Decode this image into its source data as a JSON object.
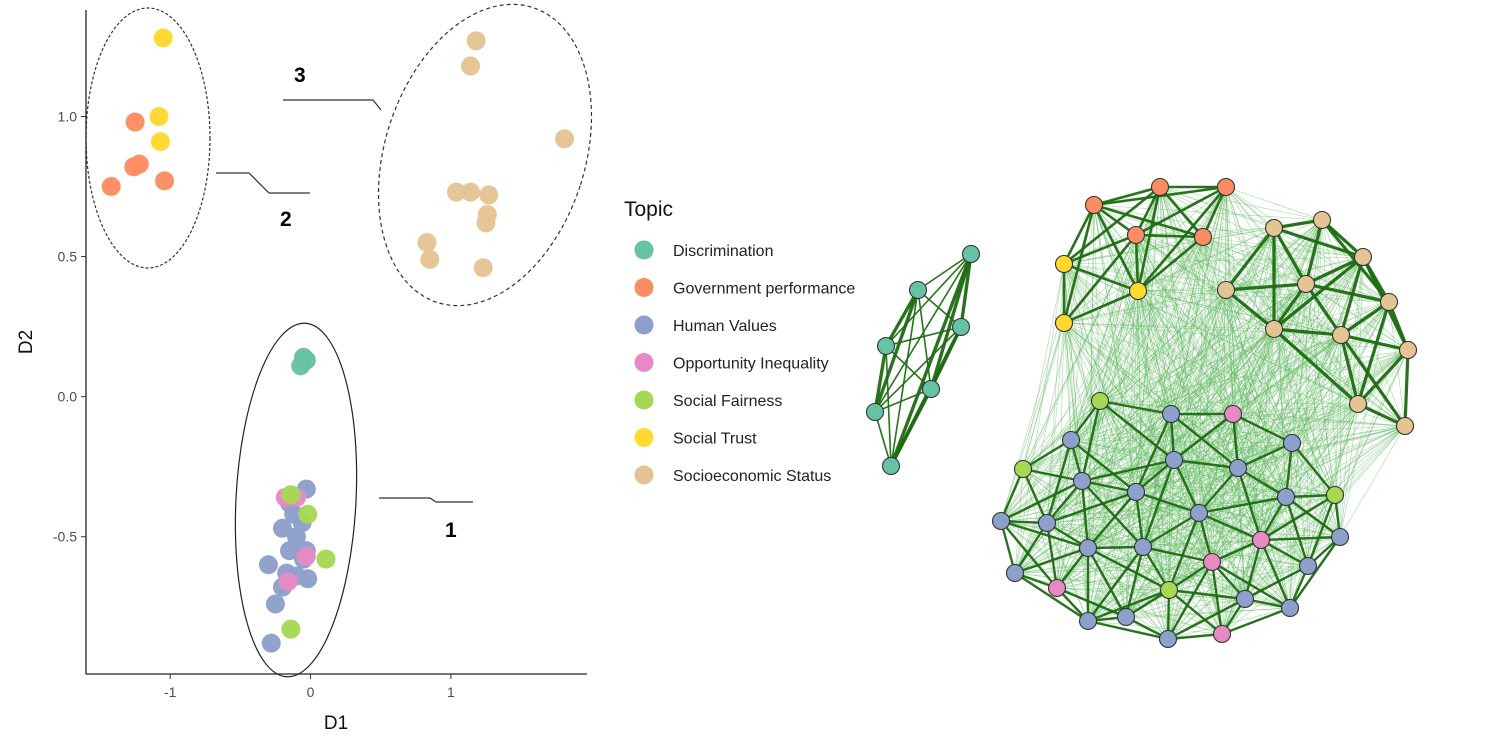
{
  "colors": {
    "Discrimination": "#66c2a5",
    "Government performance": "#fc8d62",
    "Human Values": "#8da0cb",
    "Opportunity Inequality": "#e78ac3",
    "Social Fairness": "#a6d854",
    "Social Trust": "#ffd92f",
    "Socioeconomic Status": "#e5c494"
  },
  "chart_data": [
    {
      "type": "scatter",
      "xlabel": "D1",
      "ylabel": "D2",
      "xlim": [
        -1.6,
        1.97
      ],
      "ylim": [
        -0.99,
        1.38
      ],
      "xticks": [
        "-1",
        "0",
        "1"
      ],
      "yticks": [
        "1.0",
        "0.5",
        "0.0",
        "-0.5"
      ],
      "xtick_values": [
        -1,
        0,
        1
      ],
      "ytick_values": [
        1.0,
        0.5,
        0.0,
        -0.5
      ],
      "grid": false,
      "cluster_labels": [
        "1",
        "2",
        "3"
      ],
      "series": [
        {
          "name": "Discrimination",
          "points": [
            [
              -0.05,
              0.14
            ],
            [
              -0.03,
              0.13
            ],
            [
              -0.07,
              0.11
            ]
          ]
        },
        {
          "name": "Government performance",
          "points": [
            [
              -1.25,
              0.98
            ],
            [
              -1.22,
              0.83
            ],
            [
              -1.26,
              0.82
            ],
            [
              -1.04,
              0.77
            ],
            [
              -1.42,
              0.75
            ]
          ]
        },
        {
          "name": "Human Values",
          "points": [
            [
              -0.03,
              -0.33
            ],
            [
              -0.15,
              -0.38
            ],
            [
              -0.12,
              -0.42
            ],
            [
              -0.06,
              -0.45
            ],
            [
              -0.2,
              -0.47
            ],
            [
              -0.1,
              -0.5
            ],
            [
              -0.15,
              -0.55
            ],
            [
              -0.03,
              -0.55
            ],
            [
              -0.3,
              -0.6
            ],
            [
              -0.17,
              -0.63
            ],
            [
              -0.1,
              -0.64
            ],
            [
              -0.02,
              -0.65
            ],
            [
              -0.2,
              -0.68
            ],
            [
              -0.25,
              -0.74
            ],
            [
              -0.28,
              -0.88
            ],
            [
              -0.05,
              -0.58
            ]
          ]
        },
        {
          "name": "Opportunity Inequality",
          "points": [
            [
              -0.18,
              -0.36
            ],
            [
              -0.1,
              -0.36
            ],
            [
              -0.03,
              -0.57
            ],
            [
              -0.16,
              -0.66
            ]
          ]
        },
        {
          "name": "Social Fairness",
          "points": [
            [
              -0.14,
              -0.35
            ],
            [
              -0.02,
              -0.42
            ],
            [
              0.11,
              -0.58
            ],
            [
              -0.14,
              -0.83
            ]
          ]
        },
        {
          "name": "Social Trust",
          "points": [
            [
              -1.05,
              1.28
            ],
            [
              -1.08,
              1.0
            ],
            [
              -1.07,
              0.91
            ]
          ]
        },
        {
          "name": "Socioeconomic Status",
          "points": [
            [
              1.18,
              1.27
            ],
            [
              1.14,
              1.18
            ],
            [
              1.81,
              0.92
            ],
            [
              1.04,
              0.73
            ],
            [
              1.14,
              0.73
            ],
            [
              1.27,
              0.72
            ],
            [
              1.26,
              0.65
            ],
            [
              1.25,
              0.62
            ],
            [
              0.83,
              0.55
            ],
            [
              0.85,
              0.49
            ],
            [
              1.23,
              0.46
            ]
          ]
        }
      ]
    },
    {
      "type": "network",
      "legend": {
        "title": "Topic",
        "position": "left",
        "entries": [
          "Discrimination",
          "Government performance",
          "Human Values",
          "Opportunity Inequality",
          "Social Fairness",
          "Social Trust",
          "Socioeconomic Status"
        ]
      }
    }
  ]
}
